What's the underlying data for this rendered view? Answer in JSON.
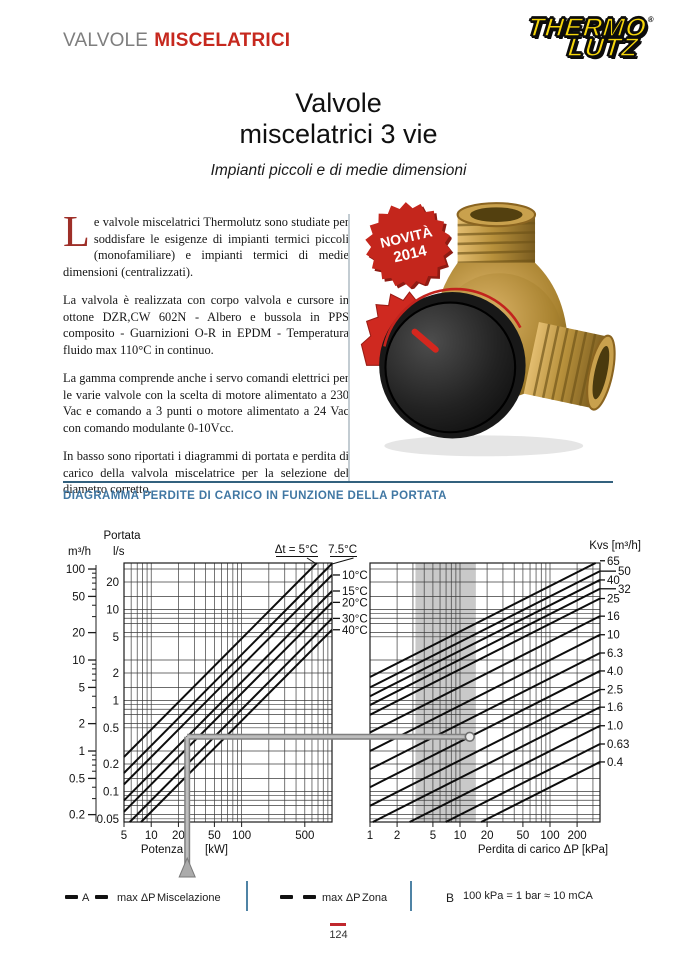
{
  "colors": {
    "accent_red": "#c6281e",
    "heading_blue": "#4077a3",
    "rule_blue": "#33617e",
    "badge_red": "#c4261c",
    "logo_yellow": "#f6d60a"
  },
  "header": {
    "brand_light": "VALVOLE",
    "brand_bold": "MISCELATRICI",
    "logo_top": "THERMO",
    "logo_bottom": "LUTZ",
    "logo_reg": "®"
  },
  "title": {
    "line1": "Valvole",
    "line2": "miscelatrici 3 vie",
    "subtitle": "Impianti piccoli e di medie dimensioni"
  },
  "intro": {
    "dropcap": "L",
    "p1": "e valvole miscelatrici Thermolutz sono studiate per soddisfare le esigenze di impianti termici piccoli (monofamiliare) e impianti termici di medie dimensioni (centralizzati).",
    "p2": "La valvola è realizzata con corpo valvola e cursore in ottone DZR,CW 602N - Albero e bussola in PPS composito - Guarnizioni O-R in EPDM - Temperatura fluido max 110°C in continuo.",
    "p3": "La gamma comprende anche i servo comandi elettrici per le varie valvole con la scelta di motore alimentato a 230 Vac e comando a 3 punti o motore alimentato a 24 Vac con comando modulante 0-10Vcc.",
    "p4": "In basso sono riportati i diagrammi di portata e perdita di carico della valvola miscelatrice per la selezione del diametro corretto."
  },
  "badge": {
    "line1": "NOVITÀ",
    "line2": "2014"
  },
  "section": {
    "heading": "DIAGRAMMA PERDITE DI CARICO IN FUNZIONE DELLA PORTATA"
  },
  "chart_data": {
    "type": "line",
    "y_axis": {
      "title": "Portata",
      "unit_m3h": "m³/h",
      "unit_ls": "l/s",
      "m3h_ticks": [
        100,
        50,
        20,
        10,
        5,
        2,
        1,
        0.5,
        0.2
      ],
      "ls_ticks": [
        20,
        10,
        5,
        2,
        1,
        0.5,
        0.2,
        0.1,
        0.05
      ],
      "ls_range": [
        0.046,
        32.4
      ]
    },
    "left_panel": {
      "xlabel": "Potenza",
      "xunit": "[kW]",
      "x_ticks": [
        5,
        10,
        20,
        50,
        100,
        500
      ],
      "x_range": [
        5,
        1000
      ],
      "dt_lines": [
        {
          "dt": 5,
          "label": "Δt = 5°C",
          "pos": "top"
        },
        {
          "dt": 7.5,
          "label": "7.5°C",
          "pos": "top"
        },
        {
          "dt": 10,
          "label": "10°C",
          "pos": "right"
        },
        {
          "dt": 15,
          "label": "15°C",
          "pos": "right"
        },
        {
          "dt": 20,
          "label": "20°C",
          "pos": "right"
        },
        {
          "dt": 30,
          "label": "30°C",
          "pos": "right"
        },
        {
          "dt": 40,
          "label": "40°C",
          "pos": "right"
        }
      ]
    },
    "right_panel": {
      "xlabel": "Perdita di carico ΔP [kPa]",
      "kvs_title": "Kvs [m³/h]",
      "x_ticks": [
        1,
        2,
        5,
        10,
        20,
        50,
        100,
        200
      ],
      "x_range": [
        1,
        360
      ],
      "kvs_lines": [
        {
          "kv": 65,
          "label": "65"
        },
        {
          "kv": 50,
          "label": "50",
          "offset": true
        },
        {
          "kv": 40,
          "label": "40"
        },
        {
          "kv": 32,
          "label": "32",
          "offset": true
        },
        {
          "kv": 25,
          "label": "25"
        },
        {
          "kv": 16,
          "label": "16"
        },
        {
          "kv": 10,
          "label": "10"
        },
        {
          "kv": 6.3,
          "label": "6.3"
        },
        {
          "kv": 4,
          "label": "4.0"
        },
        {
          "kv": 2.5,
          "label": "2.5"
        },
        {
          "kv": 1.6,
          "label": "1.6"
        },
        {
          "kv": 1,
          "label": "1.0"
        },
        {
          "kv": 0.63,
          "label": "0.63"
        },
        {
          "kv": 0.4,
          "label": "0.4"
        }
      ],
      "shaded_band_kpa": [
        3.2,
        15
      ]
    },
    "example_path": {
      "power_kw": 25,
      "dt": 15,
      "kvs": 4
    }
  },
  "legend": {
    "a_key": "A",
    "a_label": "max ΔP",
    "a_name": "Miscelazione",
    "z_label": "max ΔP",
    "z_name": "Zona",
    "b_key": "B",
    "b_text": "100 kPa = 1 bar ≈ 10 mCA"
  },
  "footer": {
    "page": "124"
  }
}
